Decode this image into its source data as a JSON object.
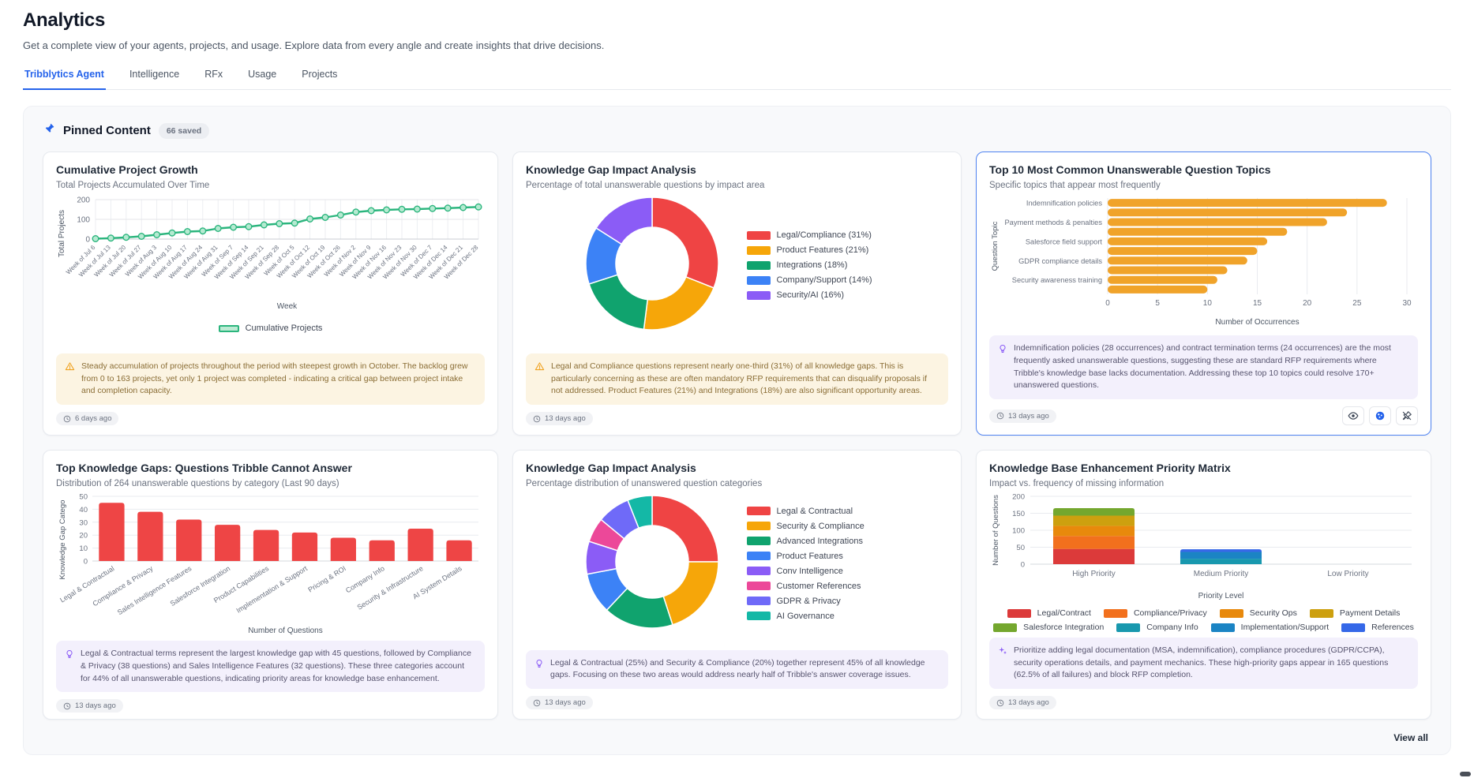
{
  "page": {
    "title": "Analytics",
    "subtitle": "Get a complete view of your agents, projects, and usage. Explore data from every angle and create insights that drive decisions.",
    "accent_color": "#2563eb",
    "tabs": [
      {
        "label": "Tribblytics Agent",
        "active": true
      },
      {
        "label": "Intelligence",
        "active": false
      },
      {
        "label": "RFx",
        "active": false
      },
      {
        "label": "Usage",
        "active": false
      },
      {
        "label": "Projects",
        "active": false
      }
    ]
  },
  "pinned": {
    "title": "Pinned Content",
    "badge": "66 saved",
    "view_all": "View all"
  },
  "cards": [
    {
      "title": "Cumulative Project Growth",
      "subtitle": "Total Projects Accumulated Over Time",
      "insight": "Steady accumulation of projects throughout the period with steepest growth in October. The backlog grew from 0 to 163 projects, yet only 1 project was completed - indicating a critical gap between project intake and completion capacity.",
      "age": "6 days ago"
    },
    {
      "title": "Knowledge Gap Impact Analysis",
      "subtitle": "Percentage of total unanswerable questions by impact area",
      "insight": "Legal and Compliance questions represent nearly one-third (31%) of all knowledge gaps. This is particularly concerning as these are often mandatory RFP requirements that can disqualify proposals if not addressed. Product Features (21%) and Integrations (18%) are also significant opportunity areas.",
      "age": "13 days ago"
    },
    {
      "title": "Top 10 Most Common Unanswerable Question Topics",
      "subtitle": "Specific topics that appear most frequently",
      "insight": "Indemnification policies (28 occurrences) and contract termination terms (24 occurrences) are the most frequently asked unanswerable questions, suggesting these are standard RFP requirements where Tribble's knowledge base lacks documentation. Addressing these top 10 topics could resolve 170+ unanswered questions.",
      "age": "13 days ago"
    },
    {
      "title": "Top Knowledge Gaps: Questions Tribble Cannot Answer",
      "subtitle": "Distribution of 264 unanswerable questions by category (Last 90 days)",
      "insight": "Legal & Contractual terms represent the largest knowledge gap with 45 questions, followed by Compliance & Privacy (38 questions) and Sales Intelligence Features (32 questions). These three categories account for 44% of all unanswerable questions, indicating priority areas for knowledge base enhancement.",
      "age": "13 days ago"
    },
    {
      "title": "Knowledge Gap Impact Analysis",
      "subtitle": "Percentage distribution of unanswered question categories",
      "insight": "Legal & Contractual (25%) and Security & Compliance (20%) together represent 45% of all knowledge gaps. Focusing on these two areas would address nearly half of Tribble's answer coverage issues.",
      "age": "13 days ago"
    },
    {
      "title": "Knowledge Base Enhancement Priority Matrix",
      "subtitle": "Impact vs. frequency of missing information",
      "insight": "Prioritize adding legal documentation (MSA, indemnification), compliance procedures (GDPR/CCPA), security operations details, and payment mechanics. These high-priority gaps appear in 165 questions (62.5% of all failures) and block RFP completion.",
      "age": "13 days ago"
    }
  ],
  "chart_data": [
    {
      "type": "line",
      "title": "Cumulative Project Growth",
      "xlabel": "Week",
      "ylabel": "Total Projects",
      "ylim": [
        0,
        200
      ],
      "yticks": [
        0,
        100,
        200
      ],
      "grid": true,
      "legend": [
        "Cumulative Projects"
      ],
      "legend_position": "bottom",
      "color": "#2bb57d",
      "x": [
        "Week of Jul 6",
        "Week of Jul 13",
        "Week of Jul 20",
        "Week of Jul 27",
        "Week of Aug 3",
        "Week of Aug 10",
        "Week of Aug 17",
        "Week of Aug 24",
        "Week of Aug 31",
        "Week of Sep 7",
        "Week of Sep 14",
        "Week of Sep 21",
        "Week of Sep 28",
        "Week of Oct 5",
        "Week of Oct 12",
        "Week of Oct 19",
        "Week of Oct 26",
        "Week of Nov 2",
        "Week of Nov 9",
        "Week of Nov 16",
        "Week of Nov 23",
        "Week of Nov 30",
        "Week of Dec 7",
        "Week of Dec 14",
        "Week of Dec 21",
        "Week of Dec 28"
      ],
      "values": [
        2,
        5,
        9,
        14,
        22,
        31,
        38,
        41,
        54,
        60,
        63,
        72,
        78,
        81,
        102,
        110,
        122,
        137,
        144,
        148,
        151,
        152,
        155,
        157,
        160,
        163
      ]
    },
    {
      "type": "pie",
      "donut": true,
      "legend_position": "right",
      "labels": [
        "Legal/Compliance (31%)",
        "Product Features (21%)",
        "Integrations (18%)",
        "Company/Support (14%)",
        "Security/AI (16%)"
      ],
      "values": [
        31,
        21,
        18,
        14,
        16
      ],
      "colors": [
        "#ef4444",
        "#f6a609",
        "#10a36e",
        "#3c82f6",
        "#8b5cf6"
      ]
    },
    {
      "type": "bar",
      "orientation": "horizontal",
      "xlabel": "Number of Occurrences",
      "ylabel": "Question Topic",
      "xlim": [
        0,
        30
      ],
      "xticks": [
        0,
        5,
        10,
        15,
        20,
        25,
        30
      ],
      "grid": true,
      "color": "#f0a32a",
      "categories": [
        "Indemnification policies",
        "",
        "Payment methods & penalties",
        "",
        "Salesforce field support",
        "",
        "GDPR compliance details",
        "",
        "Security awareness training",
        ""
      ],
      "values": [
        28,
        24,
        22,
        18,
        16,
        15,
        14,
        12,
        11,
        10
      ]
    },
    {
      "type": "bar",
      "orientation": "vertical",
      "xlabel": "Number of Questions",
      "ylabel": "Knowledge Gap Catego",
      "ylim": [
        0,
        50
      ],
      "yticks": [
        0,
        10,
        20,
        30,
        40,
        50
      ],
      "grid": true,
      "color": "#ee4545",
      "categories": [
        "Legal & Contractual",
        "Compliance & Privacy",
        "Sales Intelligence Features",
        "Salesforce Integration",
        "Product Capabilities",
        "Implementation & Support",
        "Pricing & ROI",
        "Company Info",
        "Security & Infrastructure",
        "AI System Details"
      ],
      "values": [
        45,
        38,
        32,
        28,
        24,
        22,
        18,
        16,
        25,
        16
      ]
    },
    {
      "type": "pie",
      "donut": true,
      "legend_position": "right",
      "labels": [
        "Legal & Contractual",
        "Security & Compliance",
        "Advanced Integrations",
        "Product Features",
        "Conv Intelligence",
        "Customer References",
        "GDPR & Privacy",
        "AI Governance"
      ],
      "values": [
        25,
        20,
        17,
        10,
        8,
        6,
        8,
        6
      ],
      "colors": [
        "#ef4444",
        "#f6a609",
        "#10a36e",
        "#3c82f6",
        "#8b5cf6",
        "#ec4899",
        "#6f6af8",
        "#14b8a6"
      ]
    },
    {
      "type": "bar",
      "stacked": true,
      "xlabel": "Priority Level",
      "ylabel": "Number of Questions",
      "ylim": [
        0,
        200
      ],
      "yticks": [
        0,
        50,
        100,
        150,
        200
      ],
      "grid": true,
      "legend_position": "bottom",
      "categories": [
        "High Priority",
        "Medium Priority",
        "Low Priority"
      ],
      "series": [
        {
          "name": "Legal/Contract",
          "color": "#dc3a3a",
          "values": [
            45,
            0,
            0
          ]
        },
        {
          "name": "Compliance/Privacy",
          "color": "#f2701d",
          "values": [
            38,
            0,
            0
          ]
        },
        {
          "name": "Security Ops",
          "color": "#e8890c",
          "values": [
            30,
            0,
            0
          ]
        },
        {
          "name": "Payment Details",
          "color": "#cda00f",
          "values": [
            30,
            0,
            0
          ]
        },
        {
          "name": "Salesforce Integration",
          "color": "#74a72e",
          "values": [
            22,
            0,
            0
          ]
        },
        {
          "name": "Company Info",
          "color": "#1898ae",
          "values": [
            0,
            16,
            0
          ]
        },
        {
          "name": "Implementation/Support",
          "color": "#1b84c4",
          "values": [
            0,
            20,
            0
          ]
        },
        {
          "name": "References",
          "color": "#3568e8",
          "values": [
            0,
            8,
            0
          ]
        }
      ]
    }
  ]
}
